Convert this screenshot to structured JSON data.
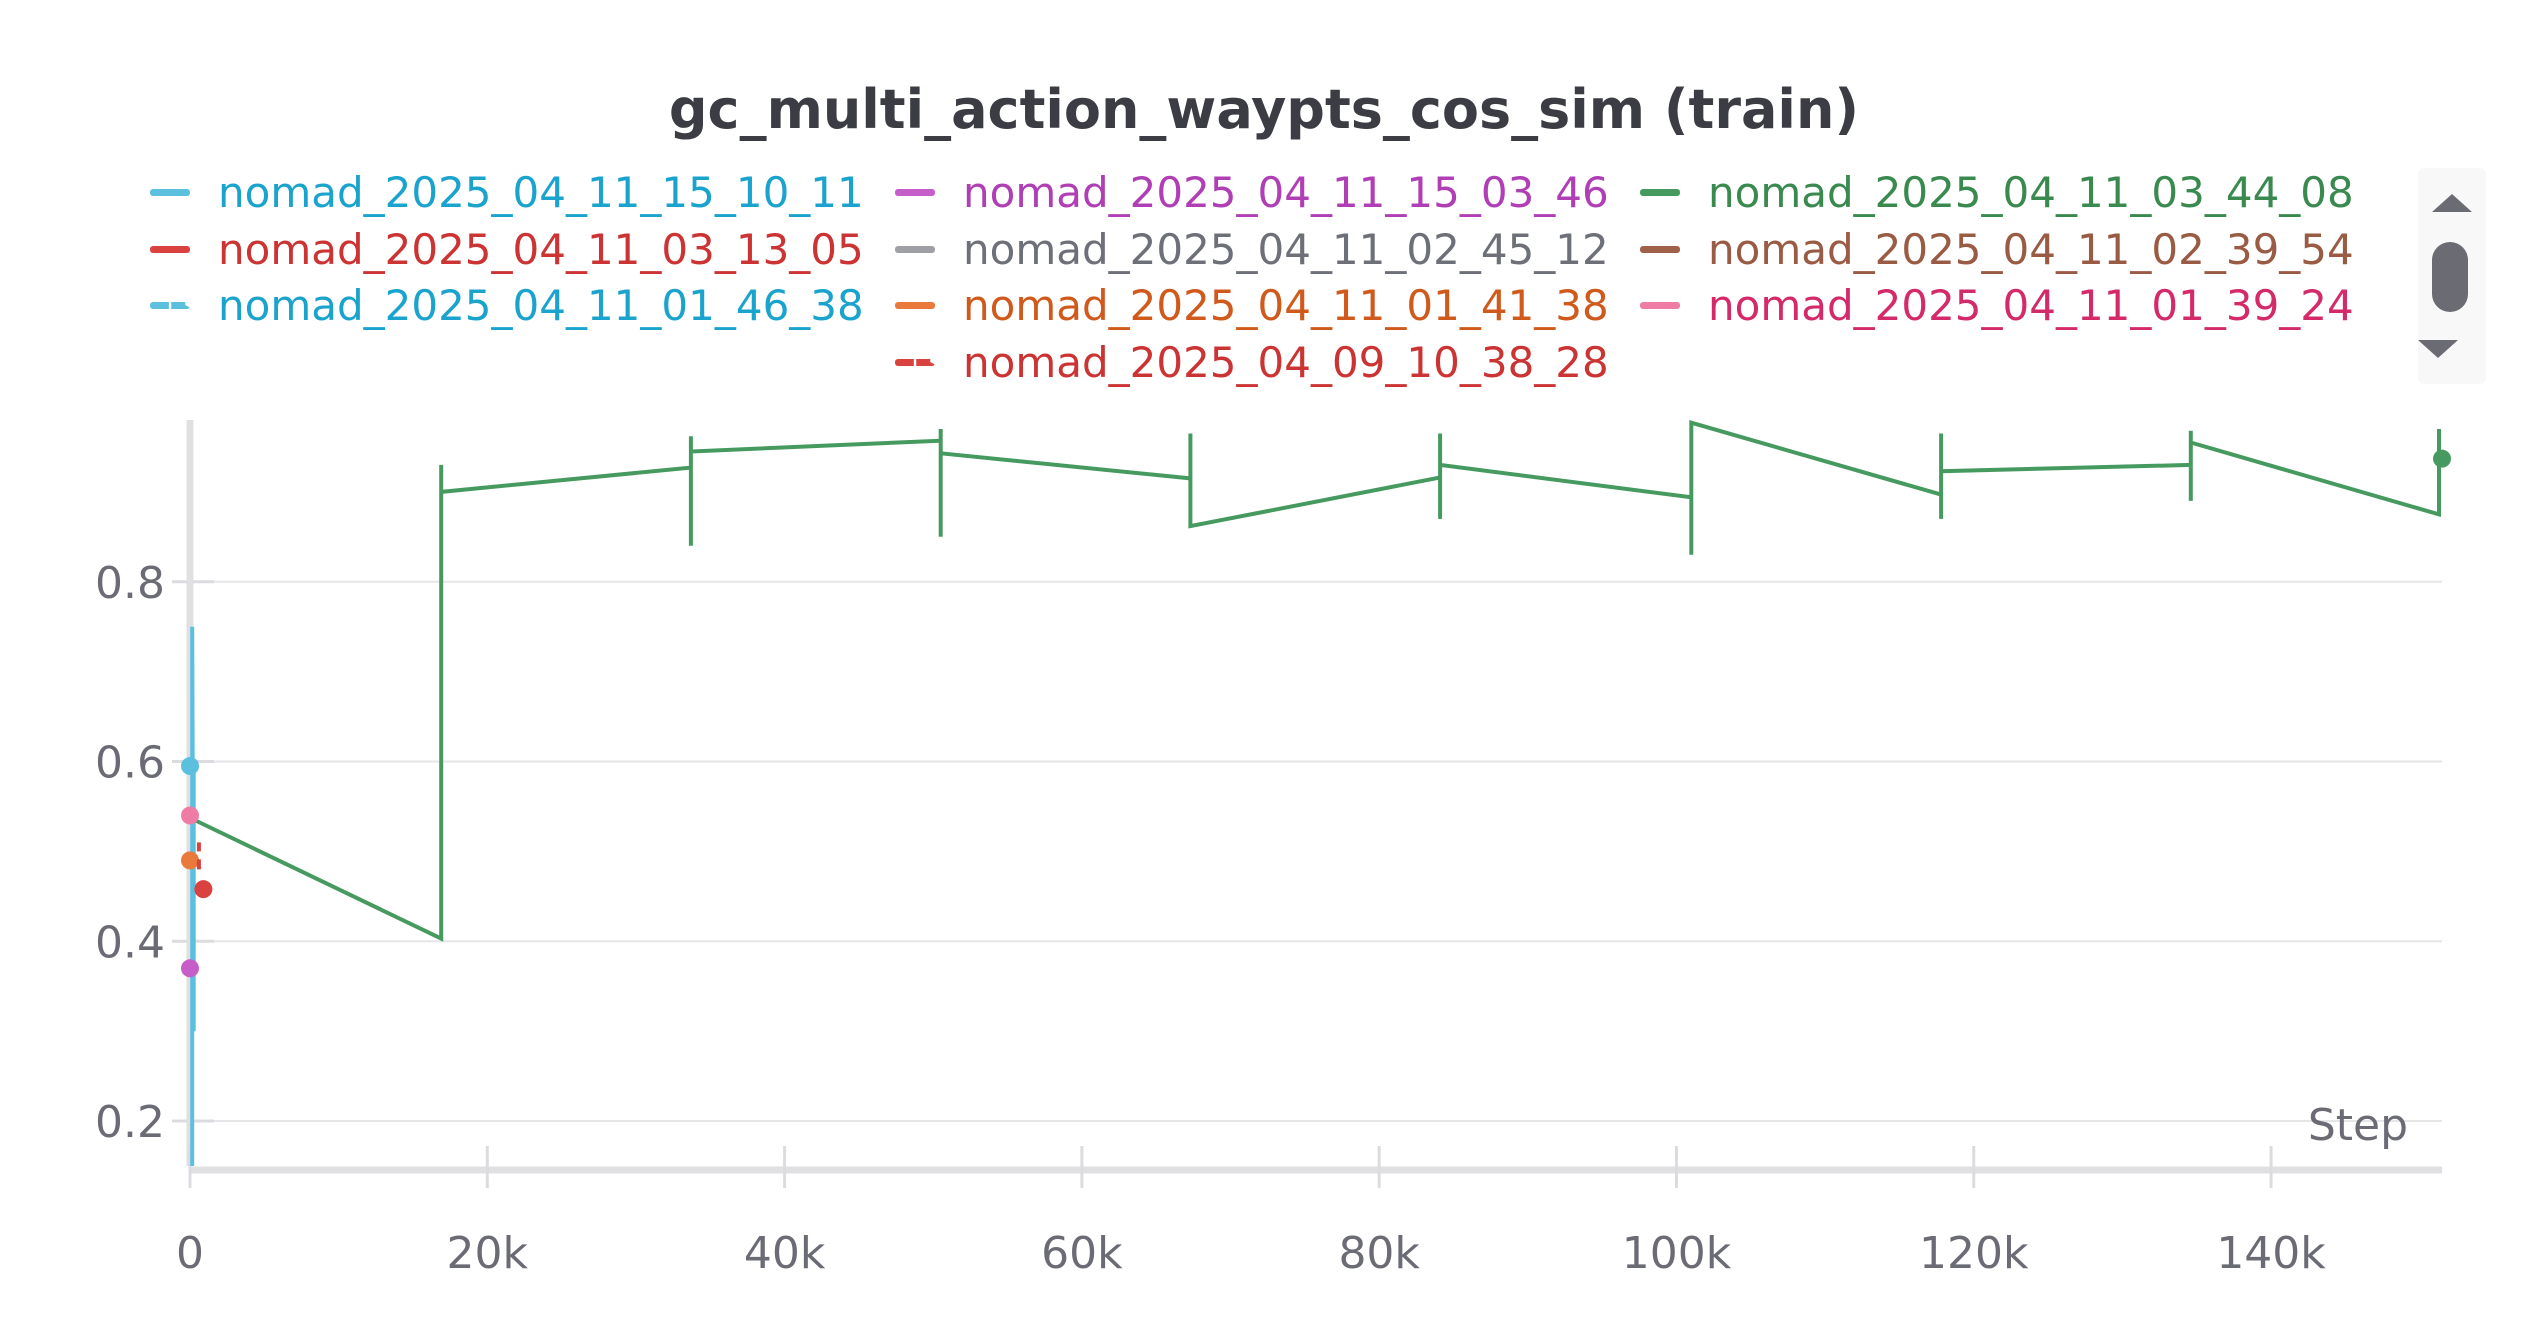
{
  "chart_data": {
    "type": "line",
    "title": "gc_multi_action_waypts_cos_sim (train)",
    "xlabel": "Step",
    "ylabel": "",
    "xlim": [
      0,
      151500
    ],
    "ylim": [
      0.15,
      0.98
    ],
    "x_ticks": [
      {
        "value": 0,
        "label": "0"
      },
      {
        "value": 20000,
        "label": "20k"
      },
      {
        "value": 40000,
        "label": "40k"
      },
      {
        "value": 60000,
        "label": "60k"
      },
      {
        "value": 80000,
        "label": "80k"
      },
      {
        "value": 100000,
        "label": "100k"
      },
      {
        "value": 120000,
        "label": "120k"
      },
      {
        "value": 140000,
        "label": "140k"
      }
    ],
    "y_ticks": [
      {
        "value": 0.2,
        "label": "0.2"
      },
      {
        "value": 0.4,
        "label": "0.4"
      },
      {
        "value": 0.6,
        "label": "0.6"
      },
      {
        "value": 0.8,
        "label": "0.8"
      }
    ],
    "grid": true,
    "legend_placement": "top",
    "series": [
      {
        "name": "nomad_2025_04_11_15_10_11",
        "color": "#5bc0de",
        "text_color": "#1aa3cc",
        "dash": "solid",
        "col": 0,
        "row": 0,
        "points": [
          [
            150,
            0.15
          ],
          [
            150,
            0.75
          ],
          [
            250,
            0.3
          ],
          [
            250,
            0.6
          ]
        ],
        "dot": null
      },
      {
        "name": "nomad_2025_04_11_15_03_46",
        "color": "#c55ec9",
        "text_color": "#b03fb5",
        "dash": "solid",
        "col": 1,
        "row": 0,
        "points": [],
        "dot": [
          0,
          0.37
        ]
      },
      {
        "name": "nomad_2025_04_11_03_44_08",
        "color": "#479a5f",
        "text_color": "#3a8a50",
        "dash": "solid",
        "col": 2,
        "row": 0,
        "points": [
          [
            300,
            0.535
          ],
          [
            16900,
            0.403
          ],
          [
            16900,
            0.93
          ],
          [
            16900,
            0.9
          ],
          [
            33700,
            0.927
          ],
          [
            33700,
            0.962
          ],
          [
            33700,
            0.84
          ],
          [
            33700,
            0.945
          ],
          [
            50500,
            0.957
          ],
          [
            50500,
            0.97
          ],
          [
            50500,
            0.85
          ],
          [
            50500,
            0.943
          ],
          [
            67300,
            0.915
          ],
          [
            67300,
            0.965
          ],
          [
            67300,
            0.89
          ],
          [
            67300,
            0.862
          ],
          [
            84100,
            0.916
          ],
          [
            84100,
            0.965
          ],
          [
            84100,
            0.87
          ],
          [
            84100,
            0.93
          ],
          [
            101000,
            0.894
          ],
          [
            101000,
            0.83
          ],
          [
            101000,
            0.977
          ],
          [
            117800,
            0.897
          ],
          [
            117800,
            0.965
          ],
          [
            117800,
            0.87
          ],
          [
            117800,
            0.923
          ],
          [
            134600,
            0.93
          ],
          [
            134600,
            0.968
          ],
          [
            134600,
            0.89
          ],
          [
            134600,
            0.955
          ],
          [
            151300,
            0.875
          ],
          [
            151300,
            0.97
          ]
        ],
        "dot": [
          151500,
          0.937
        ]
      },
      {
        "name": "nomad_2025_04_11_03_13_05",
        "color": "#d9423f",
        "text_color": "#cc3333",
        "dash": "solid",
        "col": 0,
        "row": 1,
        "points": [],
        "dot": [
          900,
          0.458
        ]
      },
      {
        "name": "nomad_2025_04_11_02_45_12",
        "color": "#9ea0a6",
        "text_color": "#6e7079",
        "dash": "solid",
        "col": 1,
        "row": 1,
        "points": [],
        "dot": null
      },
      {
        "name": "nomad_2025_04_11_02_39_54",
        "color": "#a0614a",
        "text_color": "#9a5b44",
        "dash": "solid",
        "col": 2,
        "row": 1,
        "points": [],
        "dot": null
      },
      {
        "name": "nomad_2025_04_11_01_46_38",
        "color": "#5bc0de",
        "text_color": "#1aa3cc",
        "dash": "dashed",
        "col": 0,
        "row": 2,
        "points": [],
        "dot": [
          0,
          0.595
        ]
      },
      {
        "name": "nomad_2025_04_11_01_41_38",
        "color": "#ea7a3c",
        "text_color": "#d05a1c",
        "dash": "solid",
        "col": 1,
        "row": 2,
        "points": [],
        "dot": [
          0,
          0.49
        ]
      },
      {
        "name": "nomad_2025_04_11_01_39_24",
        "color": "#ee7ca5",
        "text_color": "#d42a6a",
        "dash": "solid",
        "col": 2,
        "row": 2,
        "points": [],
        "dot": [
          0,
          0.54
        ]
      },
      {
        "name": "nomad_2025_04_09_10_38_28",
        "color": "#d9423f",
        "text_color": "#cc3333",
        "dash": "dashed",
        "col": 1,
        "row": 3,
        "points": [
          [
            600,
            0.48
          ],
          [
            600,
            0.51
          ]
        ],
        "dot": null
      }
    ]
  }
}
